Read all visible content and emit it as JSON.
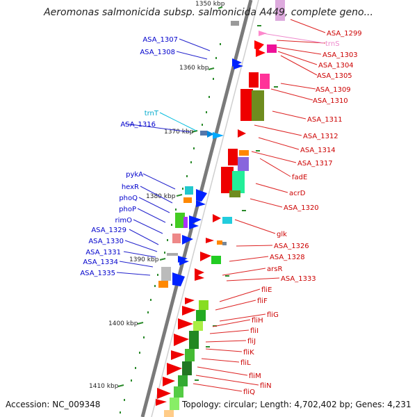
{
  "title": "Aeromonas salmonicida subsp. salmonicida A449, complete geno...",
  "footer": {
    "accession": "Accession: NC_009348",
    "summary": "Topology: circular; Length: 4,702,402 bp; Genes: 4,231"
  },
  "ticks": [
    "1350 kbp",
    "1360 kbp",
    "1370 kbp",
    "1380 kbp",
    "1390 kbp",
    "1400 kbp",
    "1410 kbp"
  ],
  "colors": {
    "backbone": "#7a7a7a",
    "forward_label": "#cc0000",
    "reverse_label": "#0000cc",
    "rna_label_trnS": "#ee88cc",
    "rna_label_trnT": "#00aacc",
    "orf_marker": "#2a8a2a"
  },
  "right_labels": [
    "ASA_1299",
    "trnS",
    "ASA_1303",
    "ASA_1304",
    "ASA_1305",
    "ASA_1309",
    "ASA_1310",
    "ASA_1311",
    "ASA_1312",
    "ASA_1314",
    "ASA_1317",
    "fadE",
    "acrD",
    "ASA_1320",
    "glk",
    "ASA_1326",
    "ASA_1328",
    "arsR",
    "ASA_1333",
    "fliE",
    "fliF",
    "fliG",
    "fliH",
    "fliI",
    "fliJ",
    "fliK",
    "fliL",
    "fliM",
    "fliN",
    "fliQ"
  ],
  "left_labels": [
    "ASA_1307",
    "ASA_1308",
    "trnT",
    "ASA_1316",
    "pykA",
    "hexR",
    "phoQ",
    "phoP",
    "rimO",
    "ASA_1329",
    "ASA_1330",
    "ASA_1331",
    "ASA_1334",
    "ASA_1335"
  ]
}
